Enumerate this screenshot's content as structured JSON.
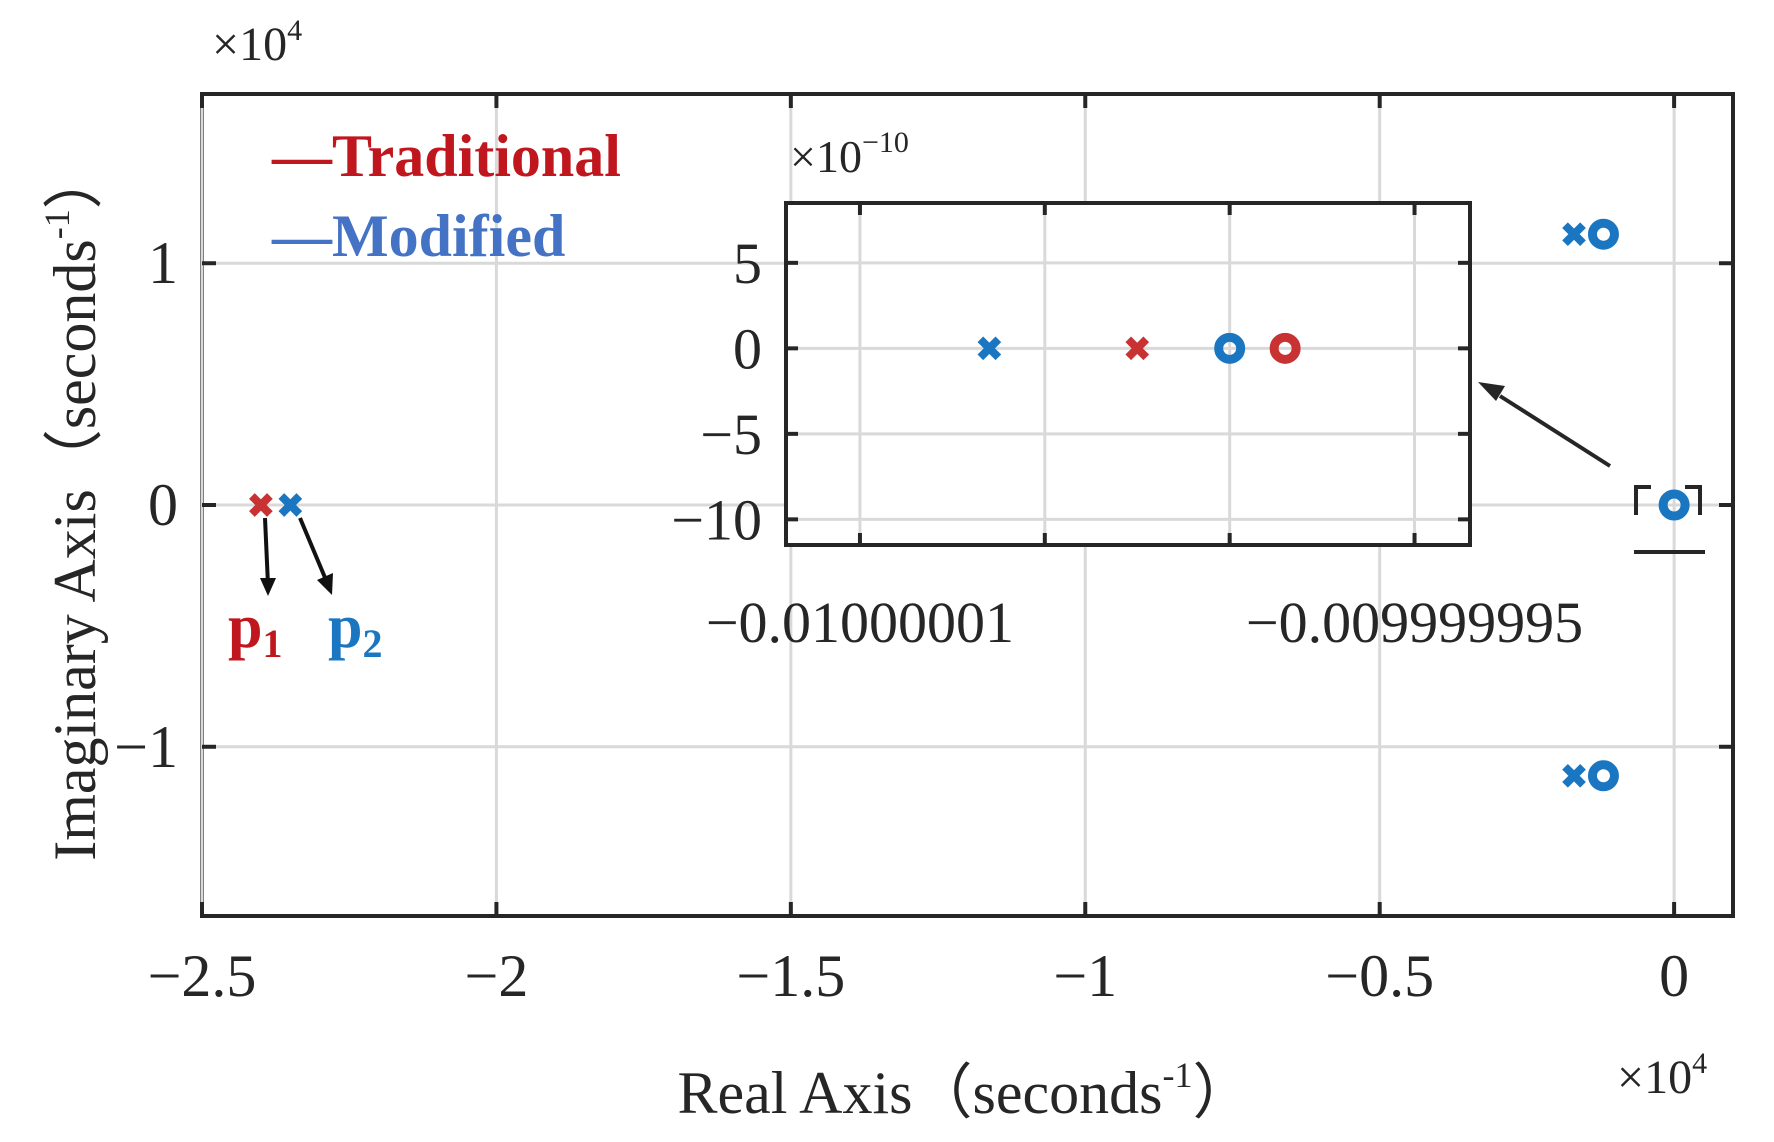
{
  "chart_data": [
    {
      "id": "main",
      "type": "scatter",
      "xlabel": "Real Axis（seconds",
      "xlabel_sup": "-1",
      "xlabel_close": "）",
      "ylabel": "Imaginary Axis（seconds",
      "ylabel_sup": "-1",
      "ylabel_close": "）",
      "x_multiplier": {
        "base": "×10",
        "exp": "4"
      },
      "y_multiplier": {
        "base": "×10",
        "exp": "4"
      },
      "xlim": [
        -2.5,
        0.1
      ],
      "ylim": [
        -1.7,
        1.7
      ],
      "xticks": [
        -2.5,
        -2,
        -1.5,
        -1,
        -0.5,
        0
      ],
      "xtick_labels": [
        "−2.5",
        "−2",
        "−1.5",
        "−1",
        "−0.5",
        "0"
      ],
      "yticks": [
        -1,
        0,
        1
      ],
      "ytick_labels": [
        "−1",
        "0",
        "1"
      ],
      "grid": true,
      "legend": {
        "placement": "top-left",
        "entries": [
          {
            "dash": "—",
            "label": "Traditional",
            "color": "#c0171f"
          },
          {
            "dash": "—",
            "label": "Modified",
            "color": "#4472c4"
          }
        ]
      },
      "series": [
        {
          "name": "Traditional",
          "color": "#c83232",
          "poles": [
            {
              "x": -2.4,
              "y": 0
            }
          ],
          "zeros": []
        },
        {
          "name": "Modified",
          "color": "#1a76c0",
          "poles": [
            {
              "x": -2.35,
              "y": 0
            },
            {
              "x": -0.17,
              "y": 1.12
            },
            {
              "x": -0.17,
              "y": -1.12
            }
          ],
          "zeros": [
            {
              "x": -0.12,
              "y": 1.12
            },
            {
              "x": -0.12,
              "y": -1.12
            },
            {
              "x": 0,
              "y": 0
            }
          ]
        }
      ],
      "annotations": [
        {
          "text": "p",
          "sub": "1",
          "color": "#c0171f"
        },
        {
          "text": "p",
          "sub": "2",
          "color": "#1a76c0"
        }
      ]
    },
    {
      "id": "inset",
      "type": "scatter",
      "y_multiplier": {
        "base": "×10",
        "exp": "−10"
      },
      "xlim": [
        -0.010000012,
        -0.0099999935
      ],
      "ylim": [
        -11.5,
        8.5
      ],
      "xticks": [
        -0.01000001,
        -0.009999995
      ],
      "xtick_labels": [
        "−0.01000001",
        "−0.009999995"
      ],
      "xgrid": [
        -0.01000001,
        -0.010000005,
        -0.01,
        -0.009999995
      ],
      "yticks": [
        -10,
        -5,
        0,
        5
      ],
      "ytick_labels": [
        "−10",
        "−5",
        "0",
        "5"
      ],
      "grid": true,
      "series": [
        {
          "name": "Modified",
          "color": "#1a76c0",
          "poles": [
            {
              "x": -0.0100000065,
              "y": 0
            }
          ],
          "zeros": [
            {
              "x": -0.01,
              "y": 0
            }
          ]
        },
        {
          "name": "Traditional",
          "color": "#c83232",
          "poles": [
            {
              "x": -0.0100000025,
              "y": 0
            }
          ],
          "zeros": [
            {
              "x": -0.0099999985,
              "y": 0
            }
          ]
        }
      ]
    }
  ]
}
